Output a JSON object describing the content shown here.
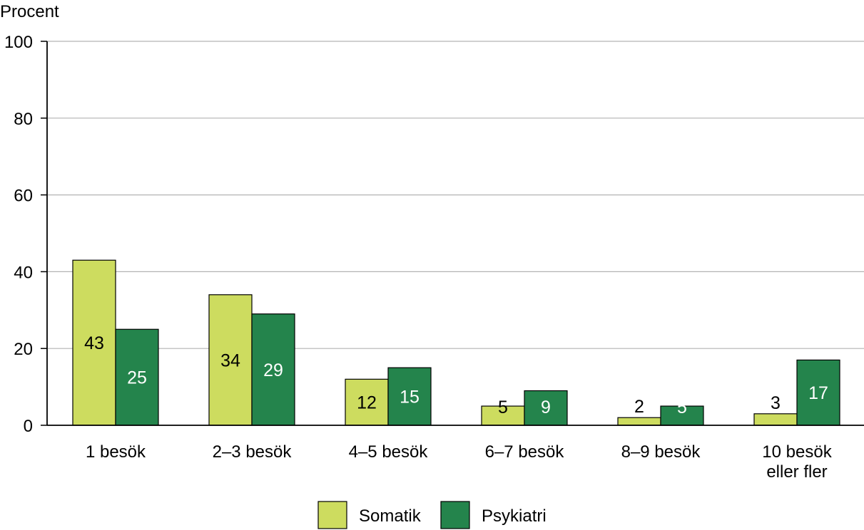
{
  "chart_data": {
    "type": "bar",
    "ylabel": "Procent",
    "xlabel": "",
    "title": "",
    "ylim": [
      0,
      100
    ],
    "yticks": [
      0,
      20,
      40,
      60,
      80,
      100
    ],
    "grid": true,
    "legend_position": "bottom-center",
    "categories": [
      [
        "1 besök"
      ],
      [
        "2–3 besök"
      ],
      [
        "4–5 besök"
      ],
      [
        "6–7 besök"
      ],
      [
        "8–9 besök"
      ],
      [
        "10 besök",
        "eller fler"
      ]
    ],
    "series": [
      {
        "name": "Somatik",
        "color": "#cddc5f",
        "label_color": "#000000",
        "values": [
          43,
          34,
          12,
          5,
          2,
          3
        ]
      },
      {
        "name": "Psykiatri",
        "color": "#24844c",
        "label_color": "#ffffff",
        "values": [
          25,
          29,
          15,
          9,
          5,
          17
        ]
      }
    ]
  }
}
